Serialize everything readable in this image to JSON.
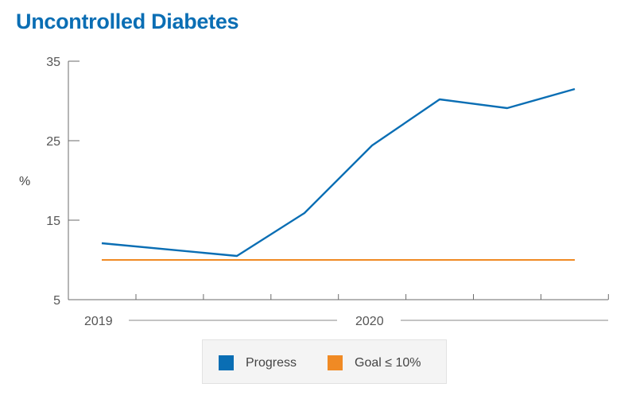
{
  "title": "Uncontrolled Diabetes",
  "colors": {
    "title": "#0a6eb4",
    "progress": "#0a6eb4",
    "goal": "#f08a24"
  },
  "chart_data": {
    "type": "line",
    "title": "Uncontrolled Diabetes",
    "ylabel": "%",
    "ylim": [
      5,
      35
    ],
    "yticks": [
      5,
      15,
      25,
      35
    ],
    "ytick_labels": [
      "5",
      "15",
      "25",
      "35"
    ],
    "year_labels": [
      "2019",
      "2020"
    ],
    "grid": false,
    "legend_position": "bottom-center",
    "series": [
      {
        "name": "Progress",
        "color": "#0a6eb4",
        "values": [
          12.1,
          null,
          10.5,
          15.9,
          24.4,
          30.2,
          29.1,
          31.5
        ]
      },
      {
        "name": "Goal ≤ 10%",
        "color": "#f08a24",
        "values": [
          10,
          null,
          10,
          10,
          10,
          10,
          10,
          10
        ]
      }
    ]
  },
  "legend": {
    "items": [
      {
        "label": "Progress",
        "color": "#0a6eb4"
      },
      {
        "label": "Goal ≤ 10%",
        "color": "#f08a24"
      }
    ]
  }
}
